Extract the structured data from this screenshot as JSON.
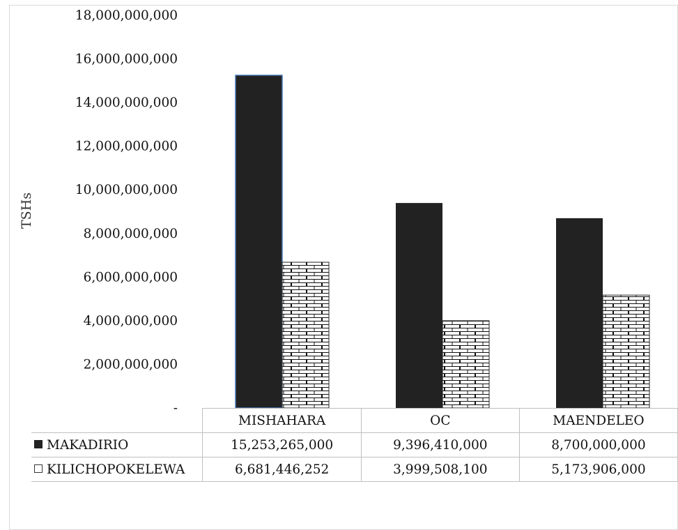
{
  "chart_data": {
    "type": "bar",
    "categories": [
      "MISHAHARA",
      "OC",
      "MAENDELEO"
    ],
    "series": [
      {
        "name": "MAKADIRIO",
        "values": [
          15253265000,
          9396410000,
          8700000000
        ],
        "display_values": [
          "15,253,265,000",
          "9,396,410,000",
          "8,700,000,000"
        ],
        "color": "#222222",
        "pattern": "solid"
      },
      {
        "name": "KILICHOPOKELEWA",
        "values": [
          6681446252,
          3999508100,
          5173906000
        ],
        "display_values": [
          "6,681,446,252",
          "3,999,508,100",
          "5,173,906,000"
        ],
        "color": "#ffffff",
        "pattern": "brick"
      }
    ],
    "ylabel": "TSHs",
    "ylim": [
      0,
      18000000000
    ],
    "y_ticks": [
      0,
      2000000000,
      4000000000,
      6000000000,
      8000000000,
      10000000000,
      12000000000,
      14000000000,
      16000000000,
      18000000000
    ],
    "y_tick_labels": [
      "-",
      "2,000,000,000",
      "4,000,000,000",
      "6,000,000,000",
      "8,000,000,000",
      "10,000,000,000",
      "12,000,000,000",
      "14,000,000,000",
      "16,000,000,000",
      "18,000,000,000"
    ],
    "grid": false,
    "legend": "data-table"
  }
}
